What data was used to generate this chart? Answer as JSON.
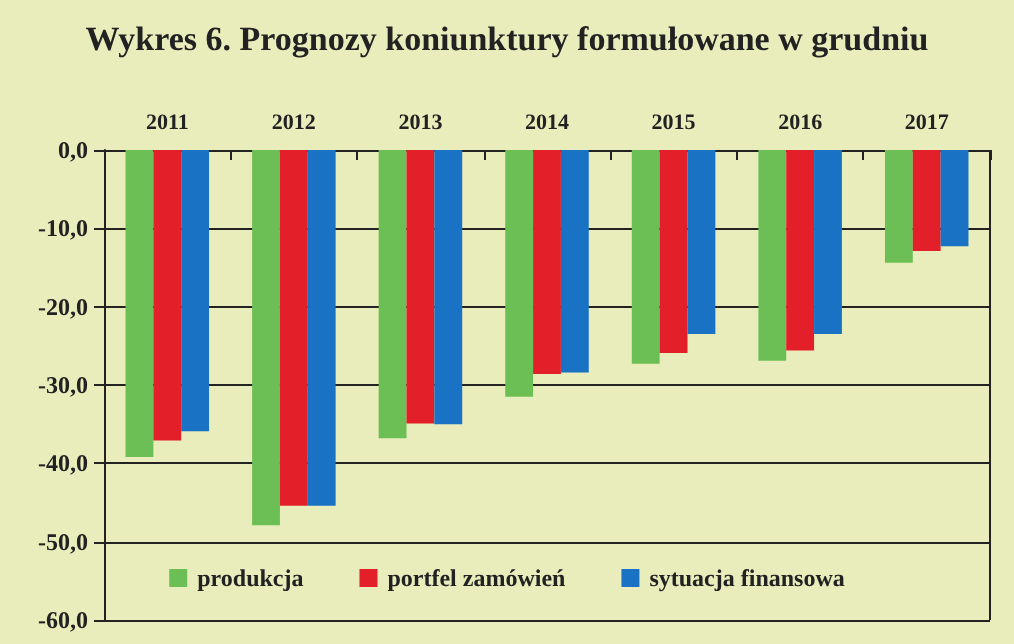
{
  "chart_data": {
    "type": "bar",
    "title": "Wykres 6. Prognozy koniunktury formułowane w grudniu",
    "categories": [
      "2011",
      "2012",
      "2013",
      "2014",
      "2015",
      "2016",
      "2017"
    ],
    "series": [
      {
        "name": "produkcja",
        "color": "#6cbf55",
        "values": [
          -39.2,
          -47.9,
          -36.8,
          -31.5,
          -27.3,
          -26.9,
          -14.4
        ]
      },
      {
        "name": "portfel zamówień",
        "color": "#e3202a",
        "values": [
          -37.1,
          -45.4,
          -34.9,
          -28.6,
          -25.9,
          -25.6,
          -12.9
        ]
      },
      {
        "name": "sytuacja finansowa",
        "color": "#1a72c4",
        "values": [
          -35.9,
          -45.4,
          -35.0,
          -28.4,
          -23.5,
          -23.5,
          -12.3
        ]
      }
    ],
    "ylim": [
      -60,
      0
    ],
    "yticks": [
      {
        "value": 0,
        "label": "0,0"
      },
      {
        "value": -10,
        "label": "-10,0"
      },
      {
        "value": -20,
        "label": "-20,0"
      },
      {
        "value": -30,
        "label": "-30,0"
      },
      {
        "value": -40,
        "label": "-40,0"
      },
      {
        "value": -50,
        "label": "-50,0"
      },
      {
        "value": -60,
        "label": "-60,0"
      }
    ],
    "grid": "y",
    "legend": "bottom"
  }
}
